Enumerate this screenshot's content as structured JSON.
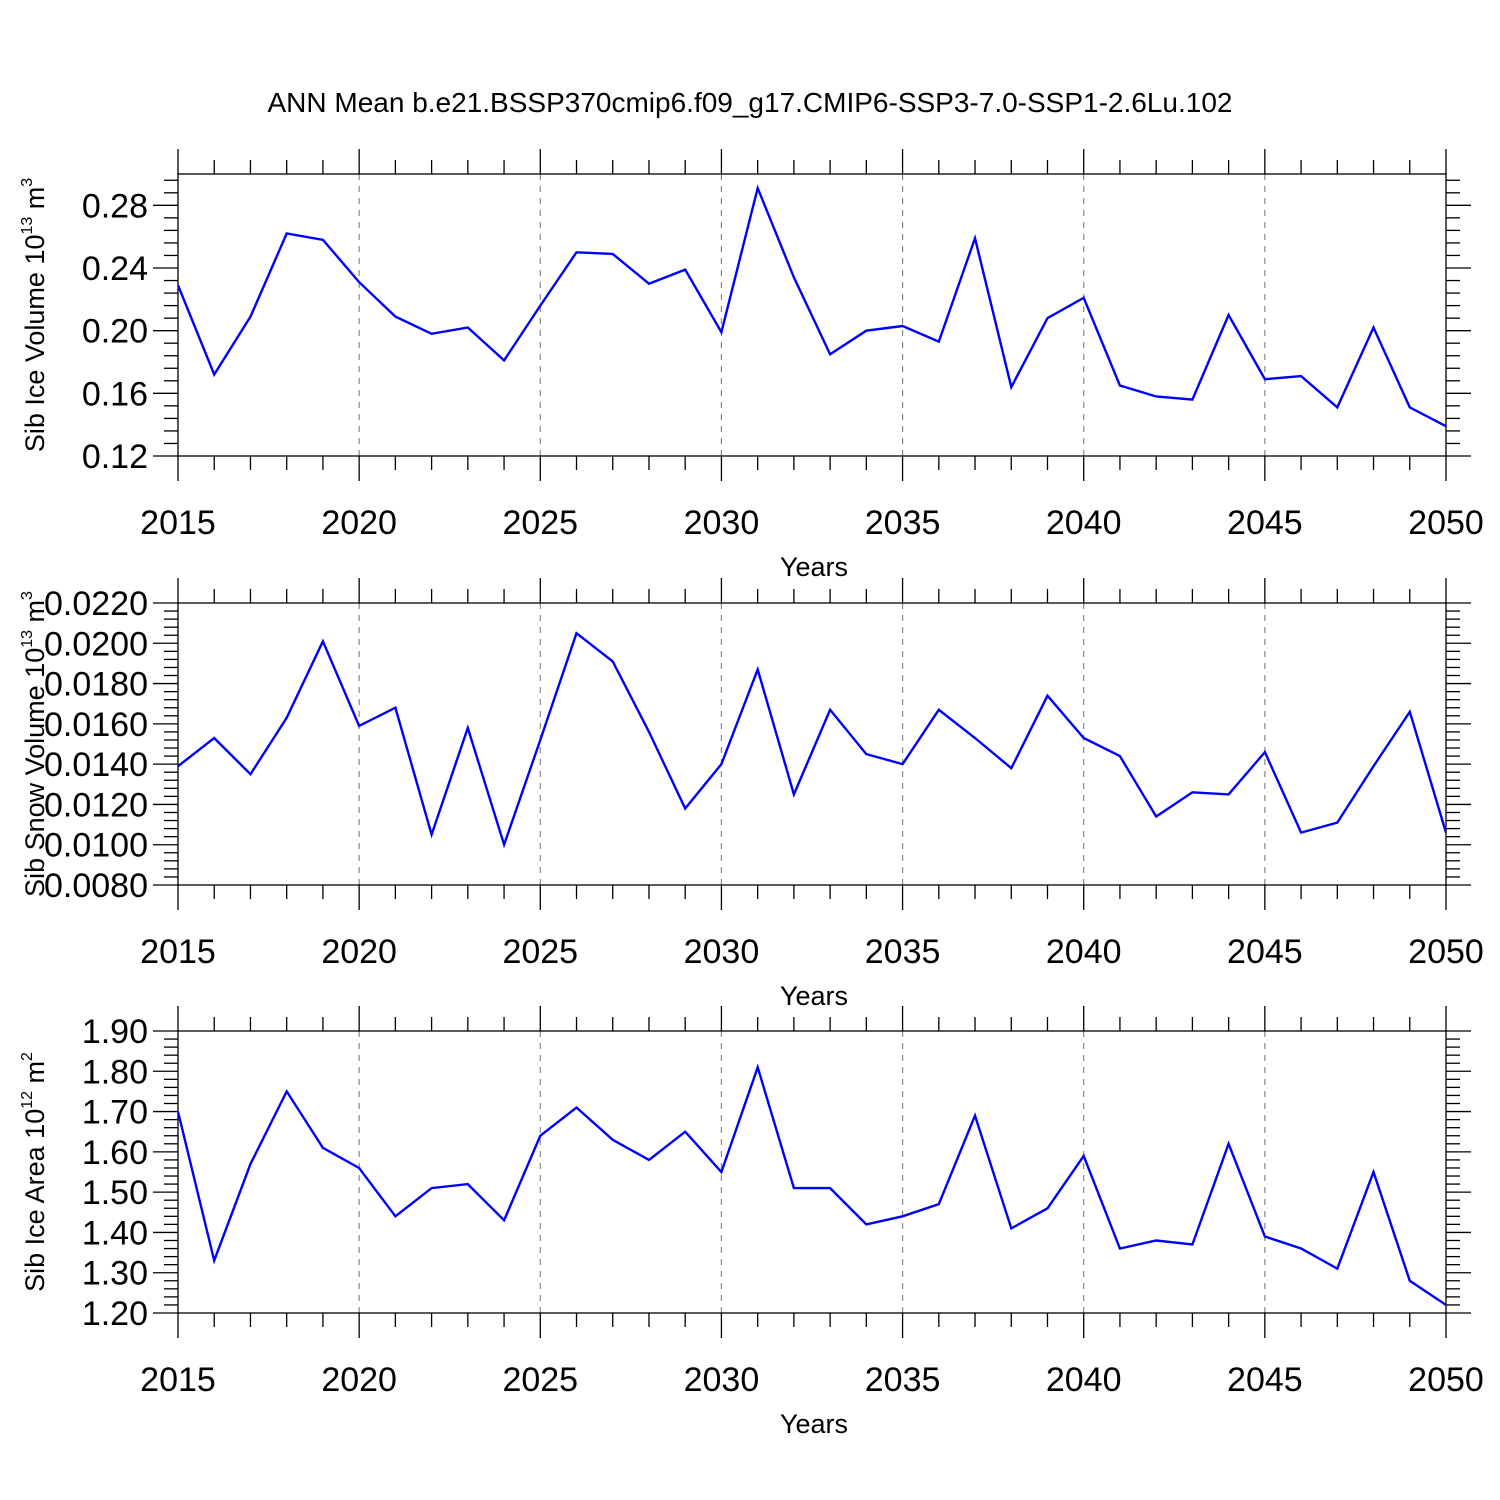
{
  "title": "ANN Mean b.e21.BSSP370cmip6.f09_g17.CMIP6-SSP3-7.0-SSP1-2.6Lu.102",
  "colors": {
    "series": "#0000ff",
    "axis": "#000000",
    "grid": "#888888"
  },
  "chart_data": [
    {
      "type": "line",
      "ylabel": {
        "main": "Sib Ice Volume 10",
        "exp": "13",
        "unit": " m",
        "unit_exp": "3"
      },
      "xlabel": "Years",
      "xlim": [
        2015,
        2050
      ],
      "ylim": [
        0.12,
        0.3
      ],
      "yticks": [
        0.12,
        0.16,
        0.2,
        0.24,
        0.28
      ],
      "ytick_labels": [
        "0.12",
        "0.16",
        "0.20",
        "0.24",
        "0.28"
      ],
      "xticks": [
        2015,
        2020,
        2025,
        2030,
        2035,
        2040,
        2045,
        2050
      ],
      "xtick_labels": [
        "2015",
        "2020",
        "2025",
        "2030",
        "2035",
        "2040",
        "2045",
        "2050"
      ],
      "grid": "vertical dashed at major x ticks",
      "x": [
        2015,
        2016,
        2017,
        2018,
        2019,
        2020,
        2021,
        2022,
        2023,
        2024,
        2025,
        2026,
        2027,
        2028,
        2029,
        2030,
        2031,
        2032,
        2033,
        2034,
        2035,
        2036,
        2037,
        2038,
        2039,
        2040,
        2041,
        2042,
        2043,
        2044,
        2045,
        2046,
        2047,
        2048,
        2049,
        2050
      ],
      "values": [
        0.229,
        0.172,
        0.209,
        0.262,
        0.258,
        0.231,
        0.209,
        0.198,
        0.202,
        0.181,
        0.216,
        0.25,
        0.249,
        0.23,
        0.239,
        0.199,
        0.291,
        0.234,
        0.185,
        0.2,
        0.203,
        0.193,
        0.259,
        0.164,
        0.208,
        0.221,
        0.165,
        0.158,
        0.156,
        0.21,
        0.169,
        0.171,
        0.151,
        0.202,
        0.151,
        0.139
      ]
    },
    {
      "type": "line",
      "ylabel": {
        "main": "Sib Snow Volume 10",
        "exp": "13",
        "unit": " m",
        "unit_exp": "3"
      },
      "xlabel": "Years",
      "xlim": [
        2015,
        2050
      ],
      "ylim": [
        0.008,
        0.022
      ],
      "yticks": [
        0.008,
        0.01,
        0.012,
        0.014,
        0.016,
        0.018,
        0.02,
        0.022
      ],
      "ytick_labels": [
        "0.0080",
        "0.0100",
        "0.0120",
        "0.0140",
        "0.0160",
        "0.0180",
        "0.0200",
        "0.0220"
      ],
      "xticks": [
        2015,
        2020,
        2025,
        2030,
        2035,
        2040,
        2045,
        2050
      ],
      "xtick_labels": [
        "2015",
        "2020",
        "2025",
        "2030",
        "2035",
        "2040",
        "2045",
        "2050"
      ],
      "grid": "vertical dashed at major x ticks",
      "x": [
        2015,
        2016,
        2017,
        2018,
        2019,
        2020,
        2021,
        2022,
        2023,
        2024,
        2025,
        2026,
        2027,
        2028,
        2029,
        2030,
        2031,
        2032,
        2033,
        2034,
        2035,
        2036,
        2037,
        2038,
        2039,
        2040,
        2041,
        2042,
        2043,
        2044,
        2045,
        2046,
        2047,
        2048,
        2049,
        2050
      ],
      "values": [
        0.0139,
        0.0153,
        0.0135,
        0.0163,
        0.0201,
        0.0159,
        0.0168,
        0.0105,
        0.0158,
        0.01,
        0.0152,
        0.0205,
        0.0191,
        0.0156,
        0.0118,
        0.014,
        0.0187,
        0.0125,
        0.0167,
        0.0145,
        0.014,
        0.0167,
        0.0153,
        0.0138,
        0.0174,
        0.0153,
        0.0144,
        0.0114,
        0.0126,
        0.0125,
        0.0146,
        0.0106,
        0.0111,
        0.0139,
        0.0166,
        0.0106
      ]
    },
    {
      "type": "line",
      "ylabel": {
        "main": "Sib Ice Area 10",
        "exp": "12",
        "unit": " m",
        "unit_exp": "2"
      },
      "xlabel": "Years",
      "xlim": [
        2015,
        2050
      ],
      "ylim": [
        1.2,
        1.9
      ],
      "yticks": [
        1.2,
        1.3,
        1.4,
        1.5,
        1.6,
        1.7,
        1.8,
        1.9
      ],
      "ytick_labels": [
        "1.20",
        "1.30",
        "1.40",
        "1.50",
        "1.60",
        "1.70",
        "1.80",
        "1.90"
      ],
      "xticks": [
        2015,
        2020,
        2025,
        2030,
        2035,
        2040,
        2045,
        2050
      ],
      "xtick_labels": [
        "2015",
        "2020",
        "2025",
        "2030",
        "2035",
        "2040",
        "2045",
        "2050"
      ],
      "grid": "vertical dashed at major x ticks",
      "x": [
        2015,
        2016,
        2017,
        2018,
        2019,
        2020,
        2021,
        2022,
        2023,
        2024,
        2025,
        2026,
        2027,
        2028,
        2029,
        2030,
        2031,
        2032,
        2033,
        2034,
        2035,
        2036,
        2037,
        2038,
        2039,
        2040,
        2041,
        2042,
        2043,
        2044,
        2045,
        2046,
        2047,
        2048,
        2049,
        2050
      ],
      "values": [
        1.7,
        1.33,
        1.57,
        1.75,
        1.61,
        1.56,
        1.44,
        1.51,
        1.52,
        1.43,
        1.64,
        1.71,
        1.63,
        1.58,
        1.65,
        1.55,
        1.81,
        1.51,
        1.51,
        1.42,
        1.44,
        1.47,
        1.69,
        1.41,
        1.46,
        1.59,
        1.36,
        1.38,
        1.37,
        1.62,
        1.39,
        1.36,
        1.31,
        1.55,
        1.28,
        1.22
      ]
    }
  ]
}
